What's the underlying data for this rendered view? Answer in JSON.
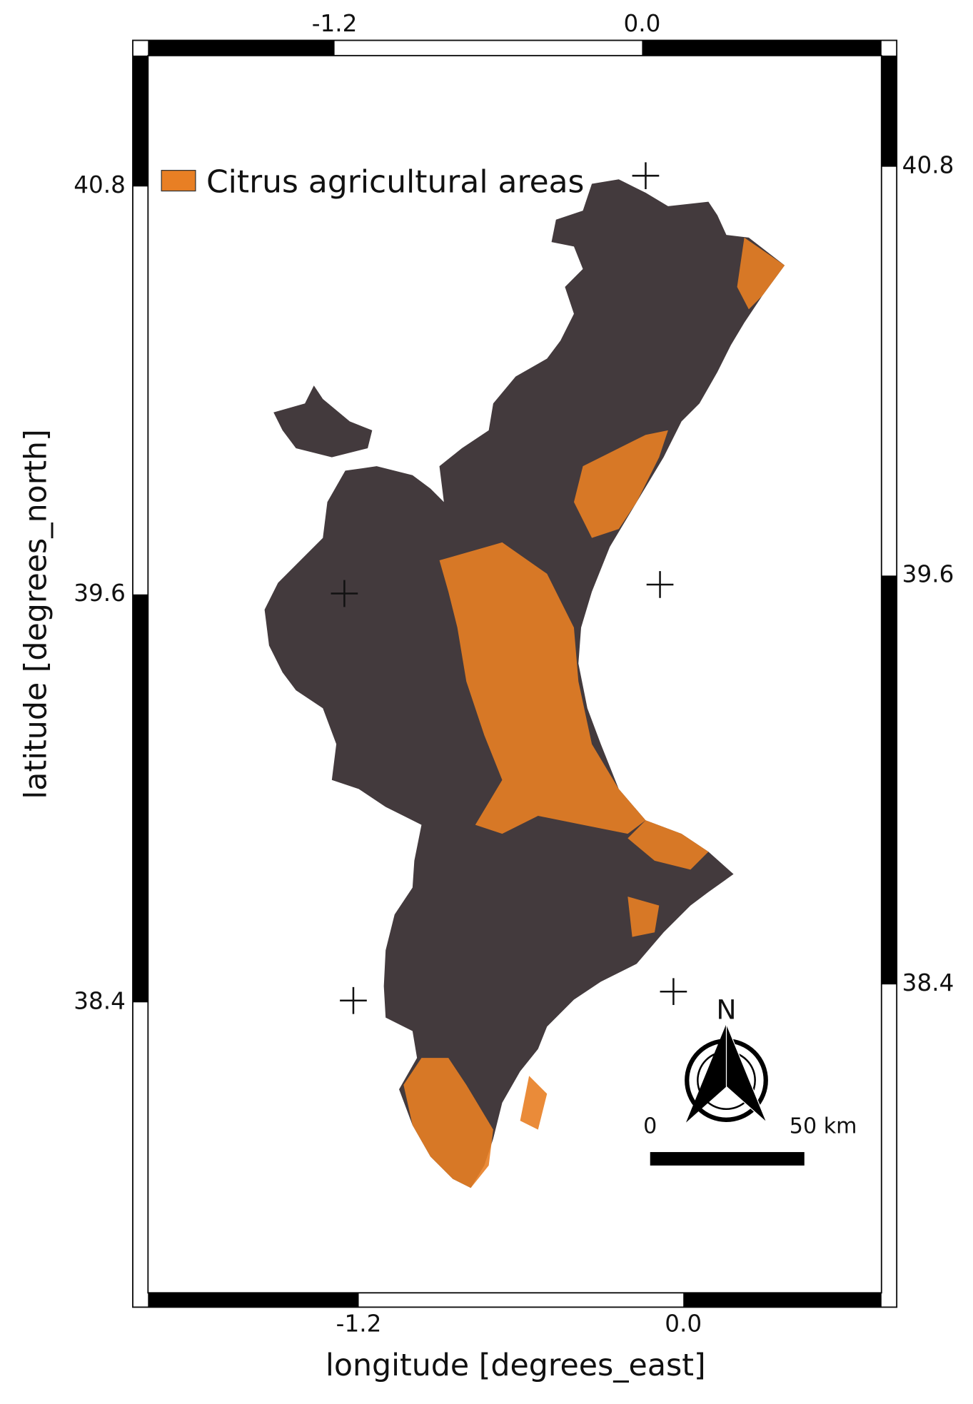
{
  "legend": {
    "label": "Citrus agricultural areas"
  },
  "axes": {
    "x_label": "longitude [degrees_east]",
    "y_label": "latitude [degrees_north]",
    "top_ticks": [
      "-1.2",
      "0.0"
    ],
    "bottom_ticks": [
      "-1.2",
      "0.0"
    ],
    "left_ticks": [
      "40.8",
      "39.6",
      "38.4"
    ],
    "right_ticks": [
      "40.8",
      "39.6",
      "38.4"
    ]
  },
  "north_arrow": {
    "label": "N"
  },
  "scale_bar": {
    "start": "0",
    "end": "50 km"
  }
}
